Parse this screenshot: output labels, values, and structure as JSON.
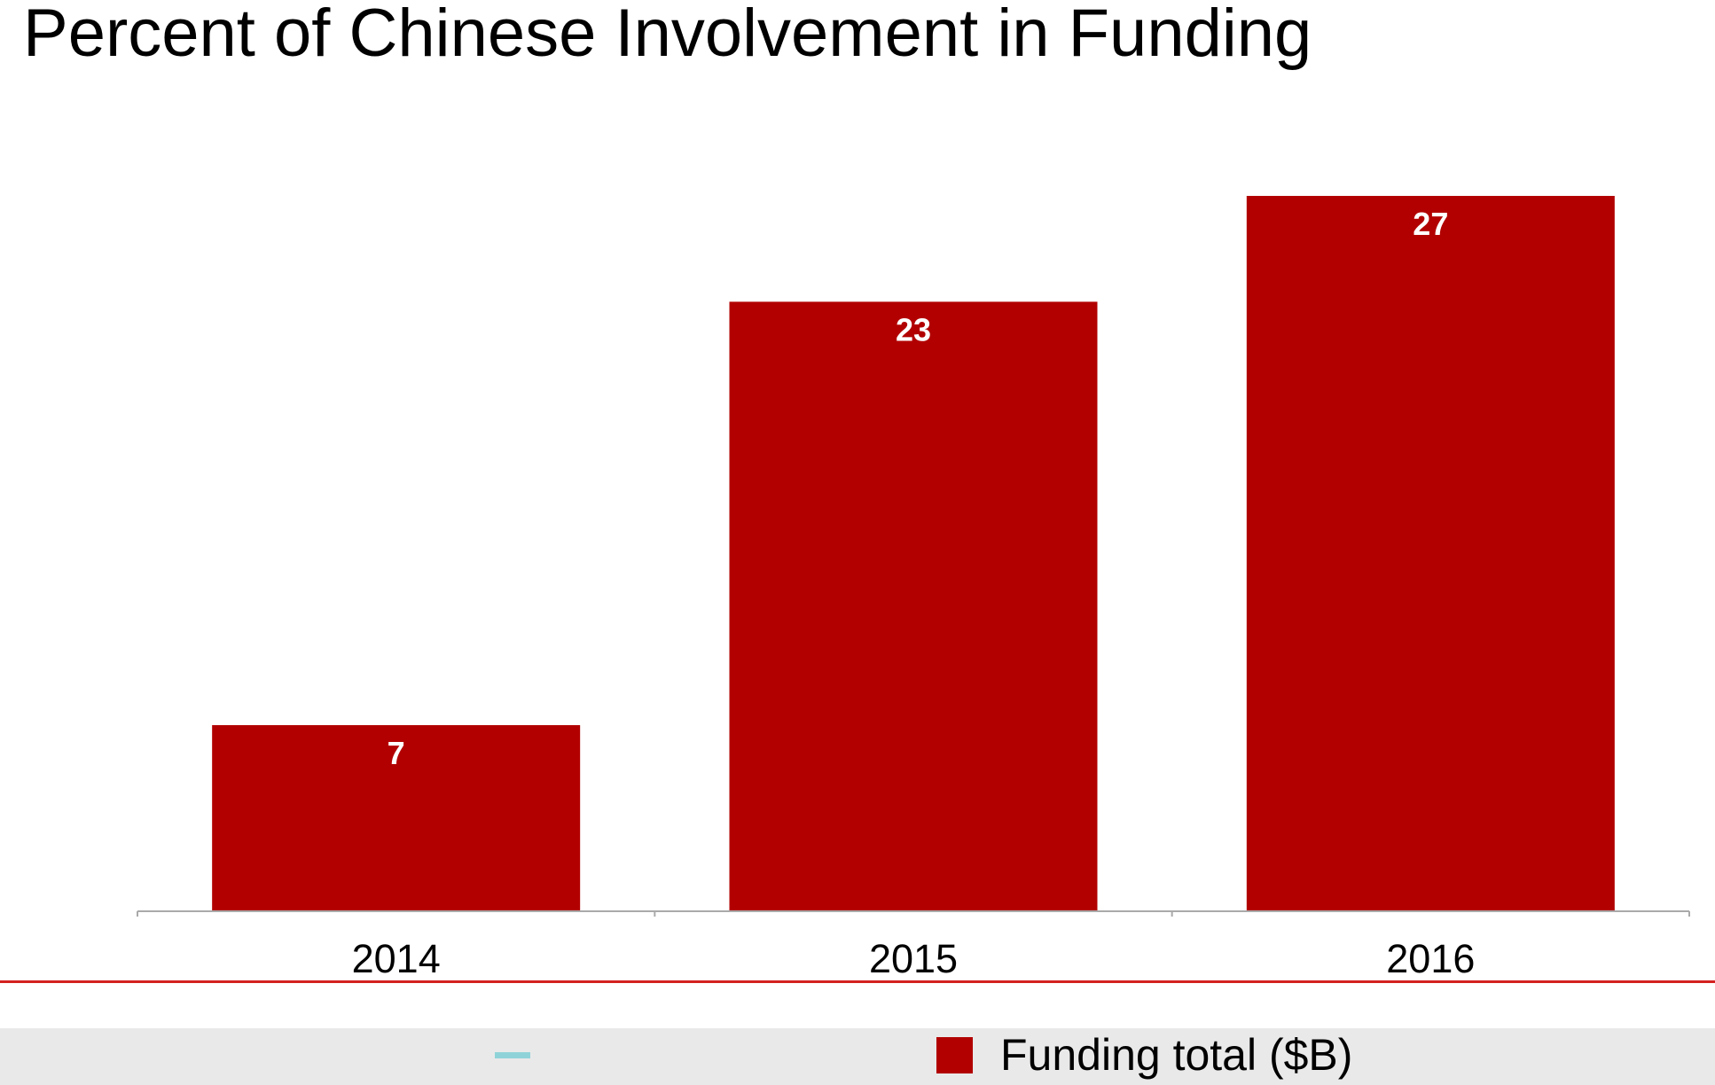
{
  "chart_data": {
    "type": "bar",
    "title": "Percent of Chinese Involvement in Funding",
    "categories": [
      "2014",
      "2015",
      "2016"
    ],
    "series": [
      {
        "name": "Funding total ($B)",
        "values": [
          7,
          23,
          27
        ],
        "color": "#b20000"
      }
    ],
    "xlabel": "",
    "ylabel": "",
    "ylim": [
      0,
      27
    ],
    "grid": false,
    "data_labels": true,
    "legend_placement": "bottom"
  },
  "colors": {
    "bar": "#b20000",
    "data_label": "#ffffff",
    "axis": "#aaaaaa",
    "rule": "#d42020",
    "legend_band": "#e9e9e9",
    "teal_mark": "#8fd3d8"
  }
}
